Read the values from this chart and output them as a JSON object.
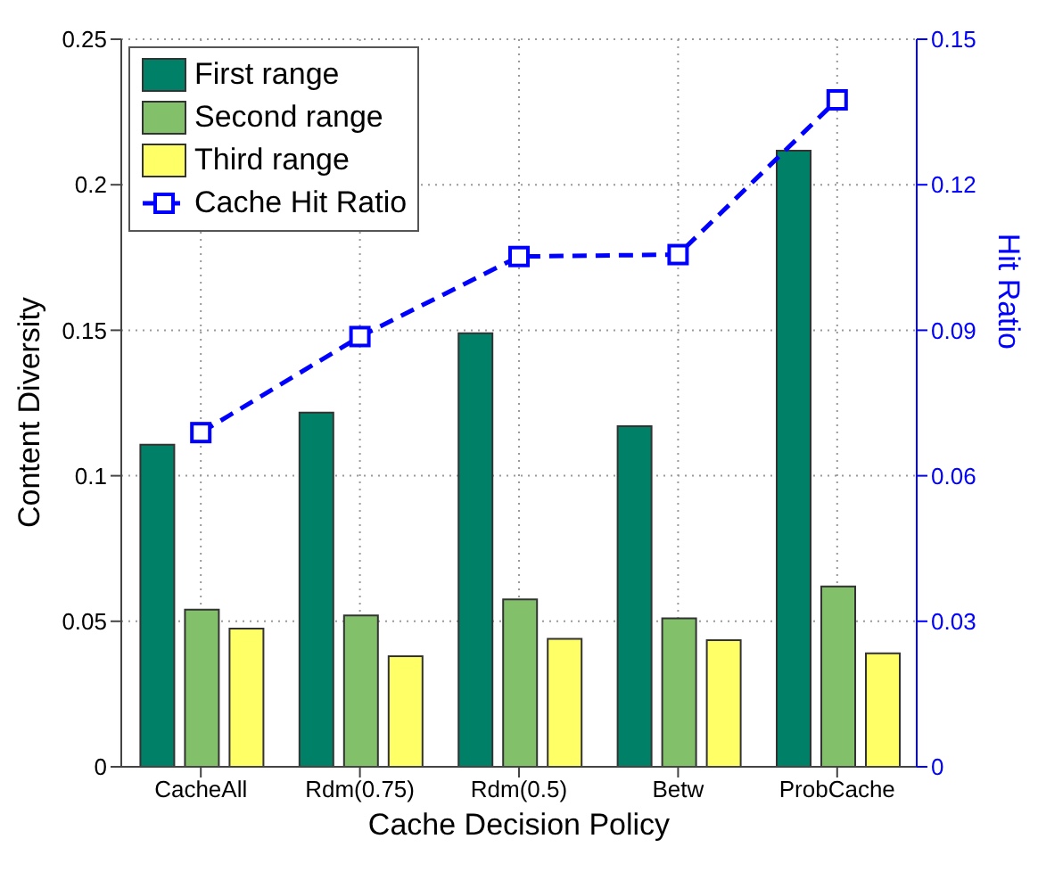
{
  "chart_data": {
    "type": "bar",
    "xlabel": "Cache Decision Policy",
    "ylabel": "Content Diversity",
    "y2label": "Hit Ratio",
    "categories": [
      "CacheAll",
      "Rdm(0.75)",
      "Rdm(0.5)",
      "Betw",
      "ProbCache"
    ],
    "series": [
      {
        "name": "First range",
        "color": "#008066",
        "values": [
          0.1107,
          0.1217,
          0.149,
          0.117,
          0.2117
        ]
      },
      {
        "name": "Second range",
        "color": "#82c06a",
        "values": [
          0.054,
          0.052,
          0.0575,
          0.051,
          0.062
        ]
      },
      {
        "name": "Third range",
        "color": "#ffff66",
        "values": [
          0.0475,
          0.038,
          0.044,
          0.0435,
          0.039
        ]
      },
      {
        "name": "Cache Hit Ratio",
        "type": "line",
        "axis": "y2",
        "color": "#0000ff",
        "marker": "square",
        "line_style": "dashed",
        "values": [
          0.0689,
          0.0887,
          0.1052,
          0.1056,
          0.1375
        ]
      }
    ],
    "ylim": [
      0,
      0.25
    ],
    "yticks": [
      0,
      0.05,
      0.1,
      0.15,
      0.2,
      0.25
    ],
    "y2lim": [
      0,
      0.15
    ],
    "y2ticks": [
      0,
      0.03,
      0.06,
      0.09,
      0.12,
      0.15
    ],
    "grid": true,
    "legend": "top left"
  }
}
